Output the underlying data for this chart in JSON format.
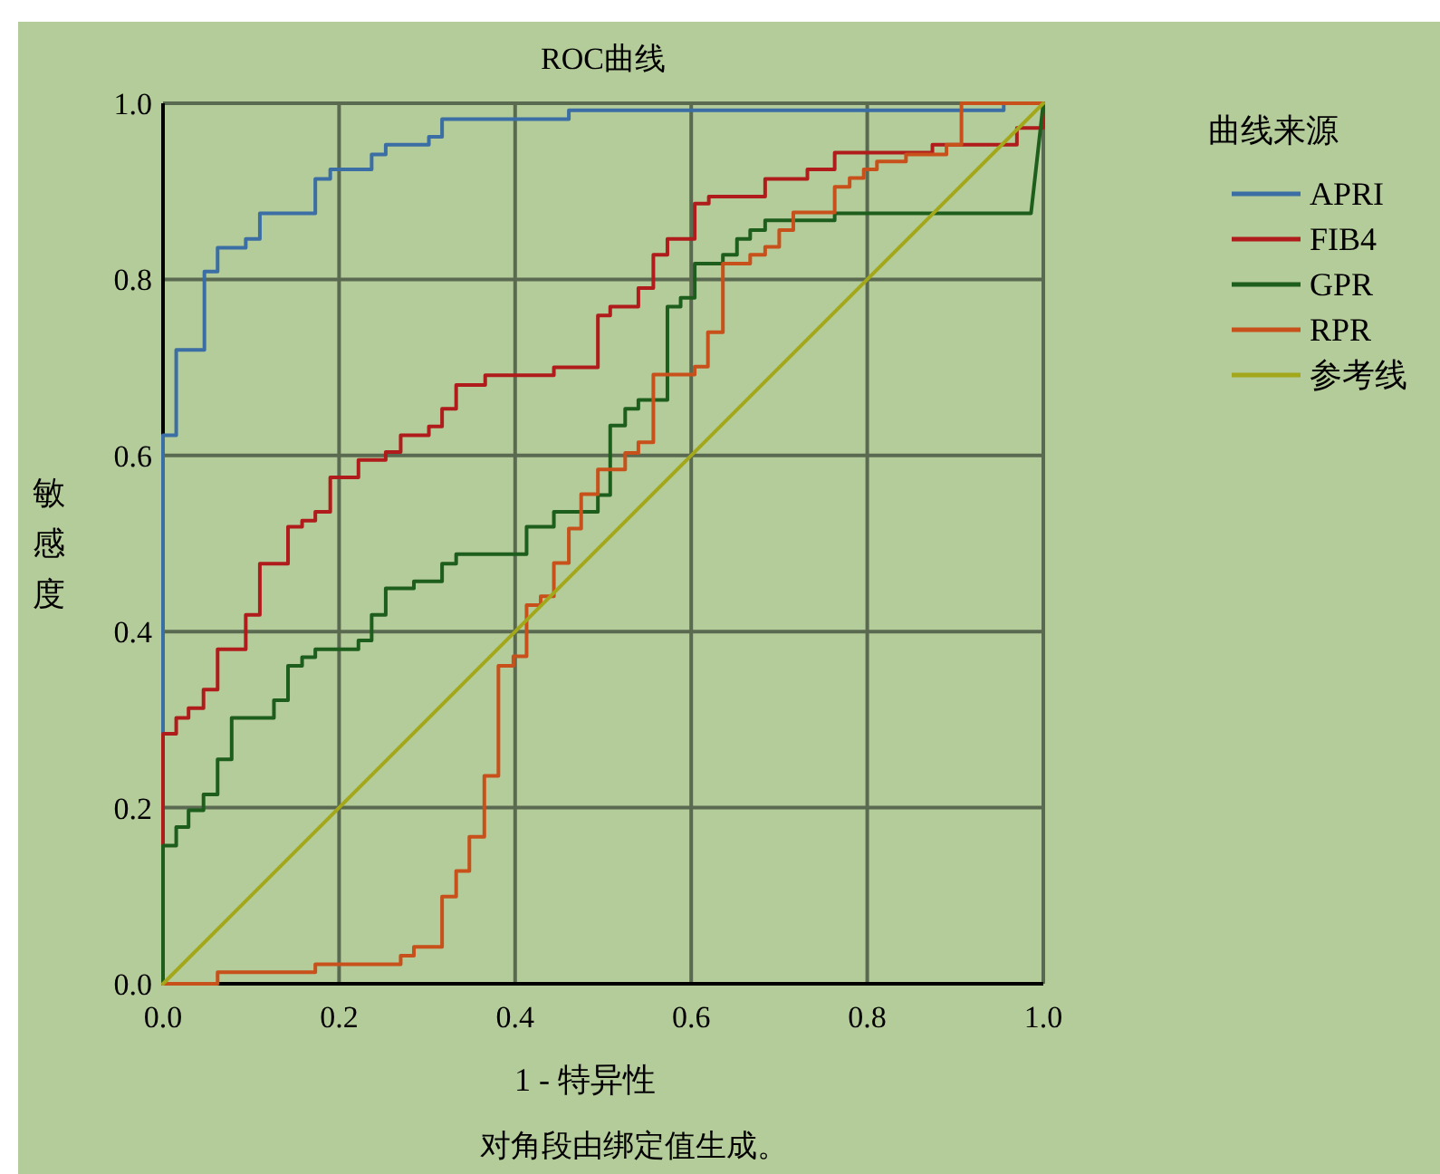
{
  "chart_data": {
    "type": "line",
    "title": "ROC曲线",
    "xlabel": "1 - 特异性",
    "ylabel": "敏感度",
    "legend_title": "曲线来源",
    "annotations": [
      "对角段由绑定值生成。"
    ],
    "xlim": [
      0,
      1
    ],
    "ylim": [
      0,
      1
    ],
    "xticks": [
      {
        "value": 0,
        "label": "0.0"
      },
      {
        "value": 0.2,
        "label": "0.2"
      },
      {
        "value": 0.4,
        "label": "0.4"
      },
      {
        "value": 0.6,
        "label": "0.6"
      },
      {
        "value": 0.8,
        "label": "0.8"
      },
      {
        "value": 1,
        "label": "1.0"
      }
    ],
    "yticks": [
      {
        "value": 0,
        "label": "0.0"
      },
      {
        "value": 0.2,
        "label": "0.2"
      },
      {
        "value": 0.4,
        "label": "0.4"
      },
      {
        "value": 0.6,
        "label": "0.6"
      },
      {
        "value": 0.8,
        "label": "0.8"
      },
      {
        "value": 1,
        "label": "1.0"
      }
    ],
    "grid": true,
    "legend": "right",
    "line_style": "solid",
    "series": [
      {
        "name": "APRI",
        "color": "#3a6ea5",
        "x": [
          0,
          0,
          0.015,
          0.015,
          0.047,
          0.047,
          0.062,
          0.062,
          0.094,
          0.094,
          0.11,
          0.11,
          0.173,
          0.173,
          0.19,
          0.19,
          0.237,
          0.237,
          0.253,
          0.253,
          0.302,
          0.302,
          0.317,
          0.317,
          0.461,
          0.461,
          0.955,
          0.955
        ],
        "values": [
          0,
          0.623,
          0.623,
          0.72,
          0.72,
          0.809,
          0.809,
          0.836,
          0.836,
          0.846,
          0.846,
          0.875,
          0.875,
          0.914,
          0.914,
          0.925,
          0.925,
          0.942,
          0.942,
          0.953,
          0.953,
          0.962,
          0.962,
          0.982,
          0.982,
          0.992,
          0.992,
          1
        ]
      },
      {
        "name": "FIB4",
        "color": "#b01c1c",
        "x": [
          0,
          0,
          0.015,
          0.015,
          0.029,
          0.029,
          0.046,
          0.046,
          0.062,
          0.062,
          0.094,
          0.094,
          0.11,
          0.11,
          0.142,
          0.142,
          0.158,
          0.158,
          0.173,
          0.173,
          0.19,
          0.19,
          0.222,
          0.222,
          0.253,
          0.253,
          0.27,
          0.27,
          0.302,
          0.302,
          0.317,
          0.317,
          0.333,
          0.333,
          0.366,
          0.366,
          0.444,
          0.444,
          0.494,
          0.494,
          0.508,
          0.508,
          0.54,
          0.54,
          0.557,
          0.557,
          0.573,
          0.573,
          0.604,
          0.604,
          0.62,
          0.62,
          0.684,
          0.684,
          0.732,
          0.732,
          0.763,
          0.763,
          0.874,
          0.874,
          0.97,
          0.97,
          1,
          1
        ],
        "values": [
          0,
          0.284,
          0.284,
          0.302,
          0.302,
          0.313,
          0.313,
          0.334,
          0.334,
          0.38,
          0.38,
          0.419,
          0.419,
          0.477,
          0.477,
          0.519,
          0.519,
          0.526,
          0.526,
          0.536,
          0.536,
          0.575,
          0.575,
          0.595,
          0.595,
          0.604,
          0.604,
          0.623,
          0.623,
          0.633,
          0.633,
          0.653,
          0.653,
          0.68,
          0.68,
          0.691,
          0.691,
          0.7,
          0.7,
          0.759,
          0.759,
          0.769,
          0.769,
          0.79,
          0.79,
          0.828,
          0.828,
          0.846,
          0.846,
          0.886,
          0.886,
          0.894,
          0.894,
          0.914,
          0.914,
          0.925,
          0.925,
          0.944,
          0.944,
          0.953,
          0.953,
          0.972,
          0.972,
          1
        ]
      },
      {
        "name": "GPR",
        "color": "#1d5e1d",
        "x": [
          0,
          0,
          0.015,
          0.015,
          0.029,
          0.029,
          0.046,
          0.046,
          0.062,
          0.062,
          0.078,
          0.078,
          0.126,
          0.126,
          0.142,
          0.142,
          0.158,
          0.158,
          0.173,
          0.173,
          0.222,
          0.222,
          0.237,
          0.237,
          0.253,
          0.253,
          0.285,
          0.285,
          0.317,
          0.317,
          0.333,
          0.333,
          0.413,
          0.413,
          0.444,
          0.444,
          0.494,
          0.494,
          0.508,
          0.508,
          0.525,
          0.525,
          0.54,
          0.54,
          0.573,
          0.573,
          0.588,
          0.588,
          0.604,
          0.604,
          0.636,
          0.636,
          0.652,
          0.652,
          0.667,
          0.667,
          0.684,
          0.684,
          0.763,
          0.763,
          0.986,
          1
        ],
        "values": [
          0,
          0.157,
          0.157,
          0.178,
          0.178,
          0.197,
          0.197,
          0.215,
          0.215,
          0.255,
          0.255,
          0.302,
          0.302,
          0.322,
          0.322,
          0.361,
          0.361,
          0.371,
          0.371,
          0.38,
          0.38,
          0.39,
          0.39,
          0.419,
          0.419,
          0.449,
          0.449,
          0.457,
          0.457,
          0.477,
          0.477,
          0.488,
          0.488,
          0.519,
          0.519,
          0.536,
          0.536,
          0.555,
          0.555,
          0.634,
          0.634,
          0.653,
          0.653,
          0.663,
          0.663,
          0.769,
          0.769,
          0.779,
          0.779,
          0.818,
          0.818,
          0.828,
          0.828,
          0.846,
          0.846,
          0.856,
          0.856,
          0.867,
          0.867,
          0.875,
          0.875,
          1
        ]
      },
      {
        "name": "RPR",
        "color": "#c8501a",
        "x": [
          0,
          0.062,
          0.062,
          0.173,
          0.173,
          0.27,
          0.27,
          0.285,
          0.285,
          0.317,
          0.317,
          0.333,
          0.333,
          0.348,
          0.348,
          0.365,
          0.365,
          0.381,
          0.381,
          0.398,
          0.398,
          0.413,
          0.413,
          0.429,
          0.429,
          0.444,
          0.444,
          0.461,
          0.461,
          0.475,
          0.475,
          0.494,
          0.494,
          0.525,
          0.525,
          0.54,
          0.54,
          0.557,
          0.557,
          0.604,
          0.604,
          0.619,
          0.619,
          0.636,
          0.636,
          0.667,
          0.667,
          0.684,
          0.684,
          0.7,
          0.7,
          0.716,
          0.716,
          0.763,
          0.763,
          0.78,
          0.78,
          0.796,
          0.796,
          0.811,
          0.811,
          0.844,
          0.844,
          0.89,
          0.89,
          0.907,
          0.907,
          1
        ],
        "values": [
          0,
          0,
          0.013,
          0.013,
          0.022,
          0.022,
          0.032,
          0.032,
          0.042,
          0.042,
          0.099,
          0.099,
          0.128,
          0.128,
          0.167,
          0.167,
          0.236,
          0.236,
          0.361,
          0.361,
          0.372,
          0.372,
          0.43,
          0.43,
          0.44,
          0.44,
          0.478,
          0.478,
          0.517,
          0.517,
          0.556,
          0.556,
          0.584,
          0.584,
          0.603,
          0.603,
          0.615,
          0.615,
          0.692,
          0.692,
          0.701,
          0.701,
          0.74,
          0.74,
          0.818,
          0.818,
          0.828,
          0.828,
          0.837,
          0.837,
          0.856,
          0.856,
          0.876,
          0.876,
          0.905,
          0.905,
          0.915,
          0.915,
          0.925,
          0.925,
          0.934,
          0.934,
          0.942,
          0.942,
          0.953,
          0.953,
          1,
          1
        ]
      },
      {
        "name": "参考线",
        "color": "#a3a81a",
        "x": [
          0,
          1
        ],
        "values": [
          0,
          1
        ]
      }
    ]
  }
}
